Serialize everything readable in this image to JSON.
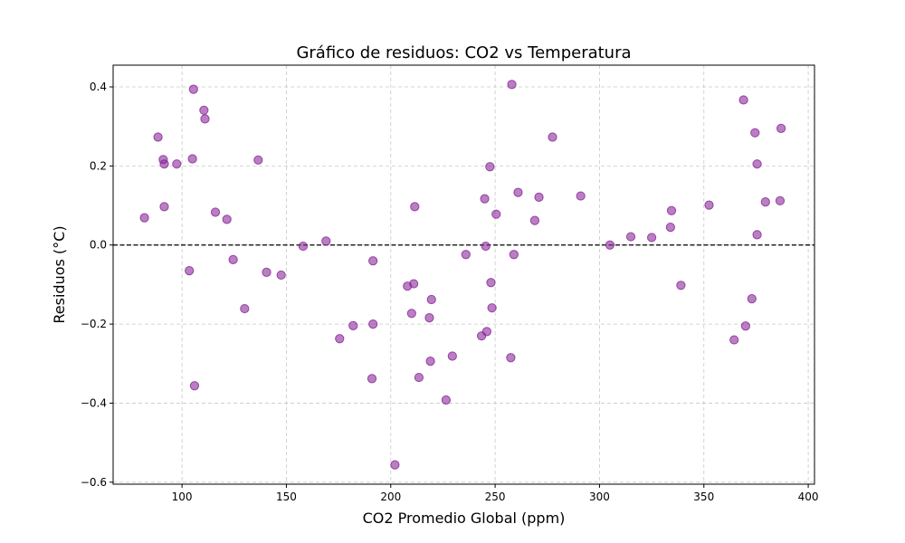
{
  "chart_data": {
    "type": "scatter",
    "title": "Gráfico de residuos: CO2 vs Temperatura",
    "xlabel": "CO2 Promedio Global (ppm)",
    "ylabel": "Residuos (°C)",
    "xlim": [
      67,
      403
    ],
    "ylim": [
      -0.605,
      0.455
    ],
    "xticks": [
      100,
      150,
      200,
      250,
      300,
      350,
      400
    ],
    "xtick_labels": [
      "100",
      "150",
      "200",
      "250",
      "300",
      "350",
      "400"
    ],
    "yticks": [
      -0.6,
      -0.4,
      -0.2,
      0.0,
      0.2,
      0.4
    ],
    "ytick_labels": [
      "−0.6",
      "−0.4",
      "−0.2",
      "0.0",
      "0.2",
      "0.4"
    ],
    "grid": true,
    "reference_line": {
      "y": 0.0,
      "style": "dashed",
      "color": "#000000"
    },
    "marker_color": "#8b2a9a",
    "x": [
      82,
      88.5,
      91,
      91.5,
      91.5,
      97.5,
      103.5,
      105,
      105.5,
      106,
      110.5,
      111,
      116,
      121.5,
      124.5,
      130,
      136.5,
      140.5,
      147.5,
      158,
      169,
      175.5,
      182,
      191,
      191.5,
      191.5,
      202,
      208,
      210,
      211,
      211.5,
      213.5,
      218.5,
      219,
      219.5,
      226.5,
      229.5,
      236,
      243.5,
      245,
      245.5,
      246,
      247.5,
      248,
      248.5,
      250.5,
      257.5,
      258,
      259,
      261,
      269,
      271,
      277.5,
      291,
      305,
      315,
      325,
      334,
      334.5,
      339,
      352.5,
      364.5,
      369,
      370,
      373,
      374.5,
      375.5,
      375.5,
      379.5,
      386.5,
      387
    ],
    "y": [
      0.069,
      0.273,
      0.216,
      0.205,
      0.097,
      0.205,
      -0.065,
      0.218,
      0.394,
      -0.356,
      0.341,
      0.319,
      0.083,
      0.065,
      -0.037,
      -0.161,
      0.215,
      -0.069,
      -0.076,
      -0.003,
      0.01,
      -0.237,
      -0.204,
      -0.338,
      -0.04,
      -0.2,
      -0.556,
      -0.104,
      -0.173,
      -0.098,
      0.097,
      -0.335,
      -0.184,
      -0.294,
      -0.138,
      -0.392,
      -0.281,
      -0.024,
      -0.23,
      0.117,
      -0.003,
      -0.219,
      0.198,
      -0.095,
      -0.159,
      0.078,
      -0.285,
      0.406,
      -0.024,
      0.133,
      0.062,
      0.121,
      0.273,
      0.124,
      0.0,
      0.021,
      0.019,
      0.045,
      0.087,
      -0.102,
      0.101,
      -0.24,
      0.367,
      -0.205,
      -0.136,
      0.284,
      0.205,
      0.026,
      0.109,
      0.112,
      0.295
    ]
  }
}
